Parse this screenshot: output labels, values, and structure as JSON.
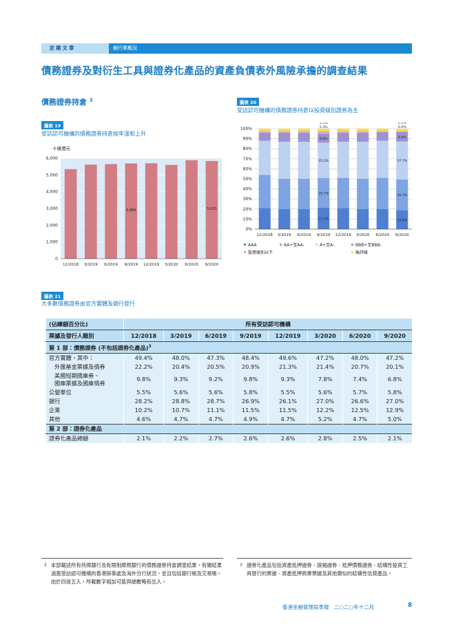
{
  "header": {
    "section": "定 期 文 章",
    "subsection": "銀行業概況"
  },
  "title": "債務證券及對衍生工具與證券化產品的資產負債表外風險承擔的調查結果",
  "subheading": {
    "text": "債務證券持倉",
    "note": "2"
  },
  "figure19": {
    "label": "圖表 19",
    "caption": "受訪認可機構的債務證券持倉按年溫和上升",
    "chart_data": {
      "type": "bar",
      "y_label": "十億港元",
      "categories": [
        "12/2018",
        "3/2019",
        "6/2019",
        "9/2019",
        "12/2019",
        "3/2020",
        "6/2020",
        "9/2020"
      ],
      "values": [
        5350,
        5620,
        5650,
        5689,
        5700,
        5600,
        5880,
        5833
      ],
      "value_labels": [
        null,
        null,
        null,
        "5,689",
        null,
        null,
        null,
        "5,833"
      ],
      "color": "#d27c83",
      "ylim": [
        0,
        6000
      ],
      "yticks": [
        0,
        {
          "value": 1000,
          "label": "1,000"
        },
        {
          "value": 2000,
          "label": "2,000"
        },
        {
          "value": 3000,
          "label": "3,000"
        },
        {
          "value": 4000,
          "label": "4,000"
        },
        {
          "value": 5000,
          "label": "5,000"
        },
        {
          "value": 6000,
          "label": "6,000"
        }
      ],
      "grid": true
    }
  },
  "figure20": {
    "label": "圖表 20",
    "caption": "受訪認可機構的債務證券持倉以投資級別證券為主",
    "chart_data": {
      "type": "stacked_bar",
      "categories": [
        "12/2018",
        "3/2019",
        "6/2019",
        "9/2019",
        "12/2019",
        "3/2020",
        "6/2020",
        "9/2020"
      ],
      "series": [
        {
          "name": "AAA",
          "color": "#4f7fd0",
          "values": [
            21,
            20,
            20,
            21.2,
            21,
            20,
            20,
            18.8
          ],
          "value_labels": [
            null,
            null,
            null,
            "21.2%",
            null,
            null,
            null,
            "18.8%"
          ]
        },
        {
          "name": "AA+至AA-",
          "color": "#7ea4e2",
          "values": [
            33,
            30,
            30,
            29.7,
            30,
            30,
            31,
            30.7
          ],
          "value_labels": [
            null,
            null,
            null,
            "29.7%",
            null,
            null,
            null,
            "30.7%"
          ]
        },
        {
          "name": "A+至A-",
          "color": "#bdd1f1",
          "values": [
            34,
            37,
            37,
            35.2,
            36,
            37,
            37,
            37.7
          ],
          "value_labels": [
            null,
            null,
            null,
            "35.2%",
            null,
            null,
            null,
            "37.7%"
          ]
        },
        {
          "name": "BBB+至BBB-",
          "color": "#9d92d0",
          "values": [
            8,
            9,
            9,
            8.8,
            9,
            9,
            8.5,
            9.4
          ],
          "value_labels": [
            null,
            null,
            null,
            "8.8%",
            null,
            null,
            null,
            "9.4%"
          ]
        },
        {
          "name": "投資級別以下",
          "color": "#e7a2c6",
          "values": [
            1.5,
            1.5,
            1.5,
            2.4,
            1.5,
            1.5,
            1,
            0.9
          ],
          "value_labels": [
            null,
            null,
            null,
            "2.4%",
            null,
            null,
            null,
            "0.9%"
          ]
        },
        {
          "name": "無評級",
          "color": "#f2df45",
          "values": [
            2.5,
            2.5,
            2.5,
            2.5,
            2.5,
            2.5,
            2.5,
            2.2
          ],
          "value_labels": [
            null,
            null,
            null,
            "2.5%",
            null,
            null,
            null,
            "2.2%"
          ]
        }
      ],
      "ylim": [
        0,
        100
      ],
      "yticks": [
        {
          "value": 0,
          "label": "0%"
        },
        {
          "value": 10,
          "label": "10%"
        },
        {
          "value": 20,
          "label": "20%"
        },
        {
          "value": 30,
          "label": "30%"
        },
        {
          "value": 40,
          "label": "40%"
        },
        {
          "value": 50,
          "label": "50%"
        },
        {
          "value": 60,
          "label": "60%"
        },
        {
          "value": 70,
          "label": "70%"
        },
        {
          "value": 80,
          "label": "80%"
        },
        {
          "value": 90,
          "label": "90%"
        },
        {
          "value": 100,
          "label": "100%"
        }
      ],
      "grid": true
    }
  },
  "figure21": {
    "label": "圖表 21",
    "caption": "大多數債務證券由官方實體及銀行發行"
  },
  "table": {
    "unit_header": "(佔總額百分比)",
    "group_header": "所有受訪認可機構",
    "row_header": "票據及發行人類別",
    "columns": [
      "12/2018",
      "3/2019",
      "6/2019",
      "9/2019",
      "12/2019",
      "3/2020",
      "6/2020",
      "9/2020"
    ],
    "sections": [
      {
        "title": "第 1 部：債務證券 (不包括證券化產品)",
        "note": "3",
        "rows": [
          {
            "label": "官方實體，其中：",
            "values": [
              "49.4%",
              "48.0%",
              "47.3%",
              "48.4%",
              "49.6%",
              "47.2%",
              "48.0%",
              "47.2%"
            ]
          },
          {
            "label": "外匯基金票據及債券",
            "values": [
              "22.2%",
              "20.4%",
              "20.5%",
              "20.9%",
              "21.3%",
              "21.4%",
              "20.7%",
              "20.1%"
            ]
          },
          {
            "label": "美國短期國庫券、\n國庫票據及國庫債券",
            "values": [
              "9.8%",
              "9.3%",
              "9.2%",
              "9.8%",
              "9.3%",
              "7.8%",
              "7.4%",
              "6.8%"
            ]
          },
          {
            "label": "公營單位",
            "values": [
              "5.5%",
              "5.6%",
              "5.6%",
              "5.8%",
              "5.5%",
              "5.6%",
              "5.7%",
              "5.8%"
            ]
          },
          {
            "label": "銀行",
            "values": [
              "28.2%",
              "28.8%",
              "28.7%",
              "26.9%",
              "26.1%",
              "27.0%",
              "26.6%",
              "27.0%"
            ]
          },
          {
            "label": "企業",
            "values": [
              "10.2%",
              "10.7%",
              "11.1%",
              "11.5%",
              "11.5%",
              "12.2%",
              "12.5%",
              "12.9%"
            ]
          },
          {
            "label": "其他",
            "values": [
              "4.6%",
              "4.7%",
              "4.7%",
              "4.9%",
              "4.7%",
              "5.2%",
              "4.7%",
              "5.0%"
            ]
          }
        ]
      },
      {
        "title": "第 2 部：證券化產品",
        "rows": [
          {
            "label": "證券化產品總額",
            "values": [
              "2.1%",
              "2.2%",
              "2.7%",
              "2.6%",
              "2.6%",
              "2.8%",
              "2.5%",
              "2.1%"
            ]
          }
        ]
      }
    ]
  },
  "footnotes": [
    {
      "number": "2",
      "text": "本部載述所有持牌銀行及有限制牌照銀行的債務證券持倉調查結果。有關結果涵蓋受訪認可機構的香港辦事處及海外分行狀況，並且包括銀行帳及交易帳。由於四捨五入，所載數字相加可能與總數略有出入。"
    },
    {
      "number": "3",
      "text": "證券化產品包括資產抵押證券、按揭證券、抵押債務證券、結構性投資工具發行的票據、資產抵押商業票據及其他類似的結構性信貸產品。"
    }
  ],
  "footer": {
    "publication": "香港金融管理局季報　二○二○年十二月",
    "page": "8"
  }
}
